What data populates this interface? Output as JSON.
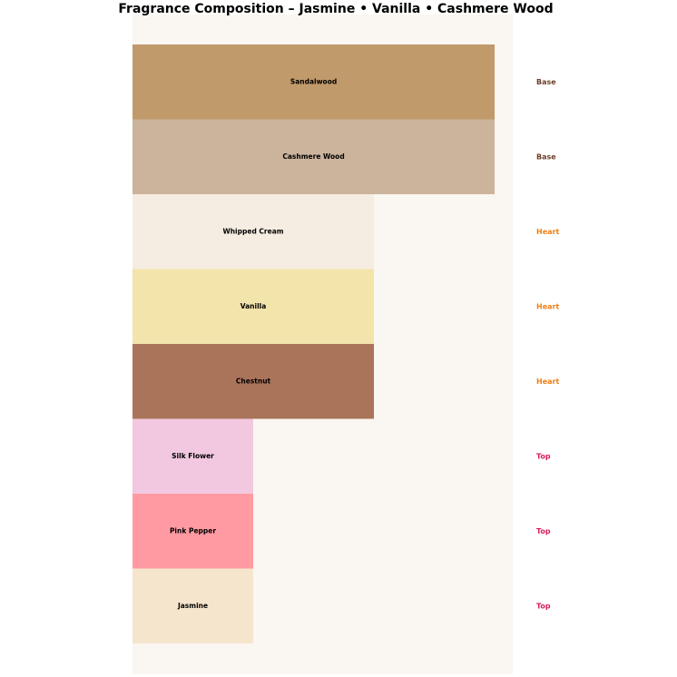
{
  "chart_data": {
    "type": "bar",
    "orientation": "horizontal",
    "title": "Fragrance Composition – Jasmine • Vanilla • Cashmere Wood",
    "categories": [
      "Sandalwood",
      "Cashmere Wood",
      "Whipped Cream",
      "Vanilla",
      "Chestnut",
      "Silk Flower",
      "Pink Pepper",
      "Jasmine"
    ],
    "values": [
      3,
      3,
      2,
      2,
      2,
      1,
      1,
      1
    ],
    "colors": [
      "#c19a6b",
      "#cbb39c",
      "#f5ede1",
      "#f3e4ab",
      "#a9745a",
      "#f2c8e0",
      "#ff9aa2",
      "#f6e5cd"
    ],
    "tiers": [
      "Base",
      "Base",
      "Heart",
      "Heart",
      "Heart",
      "Top",
      "Top",
      "Top"
    ],
    "tier_colors": [
      "#6b3f2a",
      "#6b3f2a",
      "#f07f12",
      "#f07f12",
      "#f07f12",
      "#d81b60",
      "#d81b60",
      "#d81b60"
    ],
    "xlim": [
      0,
      3.15
    ],
    "background": "#faf6f1"
  }
}
